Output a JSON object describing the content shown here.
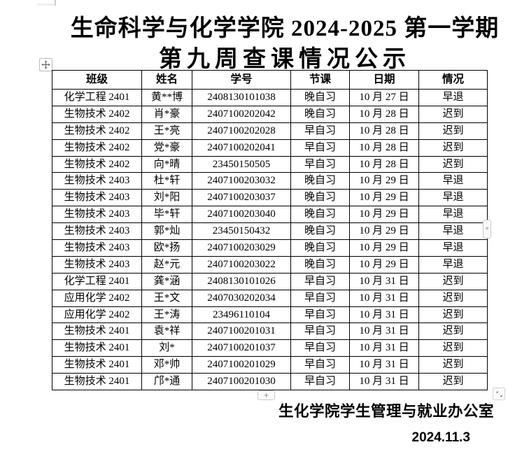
{
  "document": {
    "title_line1": "生命科学与化学学院 2024-2025 第一学期",
    "title_line2": "第九周查课情况公示",
    "footer_signature": "生化学院学生管理与就业办公室",
    "footer_date": "2024.11.3"
  },
  "table": {
    "headers": [
      "班级",
      "姓名",
      "学号",
      "节课",
      "日期",
      "情况"
    ],
    "rows": [
      [
        "化学工程 2401",
        "黄**博",
        "2408130101038",
        "晚自习",
        "10 月 27 日",
        "早退"
      ],
      [
        "生物技术 2402",
        "肖*豪",
        "2407100202042",
        "晚自习",
        "10 月 28 日",
        "迟到"
      ],
      [
        "生物技术 2402",
        "王*亮",
        "2407100202028",
        "早自习",
        "10 月 28 日",
        "迟到"
      ],
      [
        "生物技术 2402",
        "党*豪",
        "2407100202041",
        "早自习",
        "10 月 28 日",
        "迟到"
      ],
      [
        "生物技术 2402",
        "向*晴",
        "23450150505",
        "早自习",
        "10 月 28 日",
        "迟到"
      ],
      [
        "生物技术 2403",
        "杜*轩",
        "2407100203032",
        "晚自习",
        "10 月 29 日",
        "早退"
      ],
      [
        "生物技术 2403",
        "刘*阳",
        "2407100203037",
        "晚自习",
        "10 月 29 日",
        "早退"
      ],
      [
        "生物技术 2403",
        "毕*轩",
        "2407100203040",
        "晚自习",
        "10 月 29 日",
        "早退"
      ],
      [
        "生物技术 2403",
        "郭*灿",
        "23450150432",
        "晚自习",
        "10 月 29 日",
        "早退"
      ],
      [
        "生物技术 2403",
        "欧*扬",
        "2407100203029",
        "晚自习",
        "10 月 29 日",
        "早退"
      ],
      [
        "生物技术 2403",
        "赵*元",
        "2407100203022",
        "晚自习",
        "10 月 29 日",
        "早退"
      ],
      [
        "化学工程 2401",
        "龚*涵",
        "2408130101026",
        "早自习",
        "10 月 31 日",
        "迟到"
      ],
      [
        "应用化学 2402",
        "王*文",
        "2407030202034",
        "早自习",
        "10 月 31 日",
        "迟到"
      ],
      [
        "应用化学 2402",
        "王*涛",
        "23496110104",
        "早自习",
        "10 月 31 日",
        "迟到"
      ],
      [
        "生物技术 2401",
        "袁*祥",
        "2407100201031",
        "早自习",
        "10 月 31 日",
        "迟到"
      ],
      [
        "生物技术 2401",
        "刘*",
        "2407100201037",
        "早自习",
        "10 月 31 日",
        "迟到"
      ],
      [
        "生物技术 2401",
        "邓*帅",
        "2407100201029",
        "早自习",
        "10 月 31 日",
        "迟到"
      ],
      [
        "生物技术 2401",
        "邝*通",
        "2407100201030",
        "早自习",
        "10 月 31 日",
        "迟到"
      ]
    ]
  },
  "controls": {
    "add_column_label": "+",
    "add_row_label": "+",
    "move_handle_icon": "four-directional-arrows",
    "resize_handle_icon": "diagonal-resize-arrows"
  },
  "colors": {
    "page_background": "#ffffff",
    "text": "#000000",
    "table_border": "#000000",
    "handle_border": "#c9c9c9",
    "handle_glyph": "#8f8f8f"
  }
}
